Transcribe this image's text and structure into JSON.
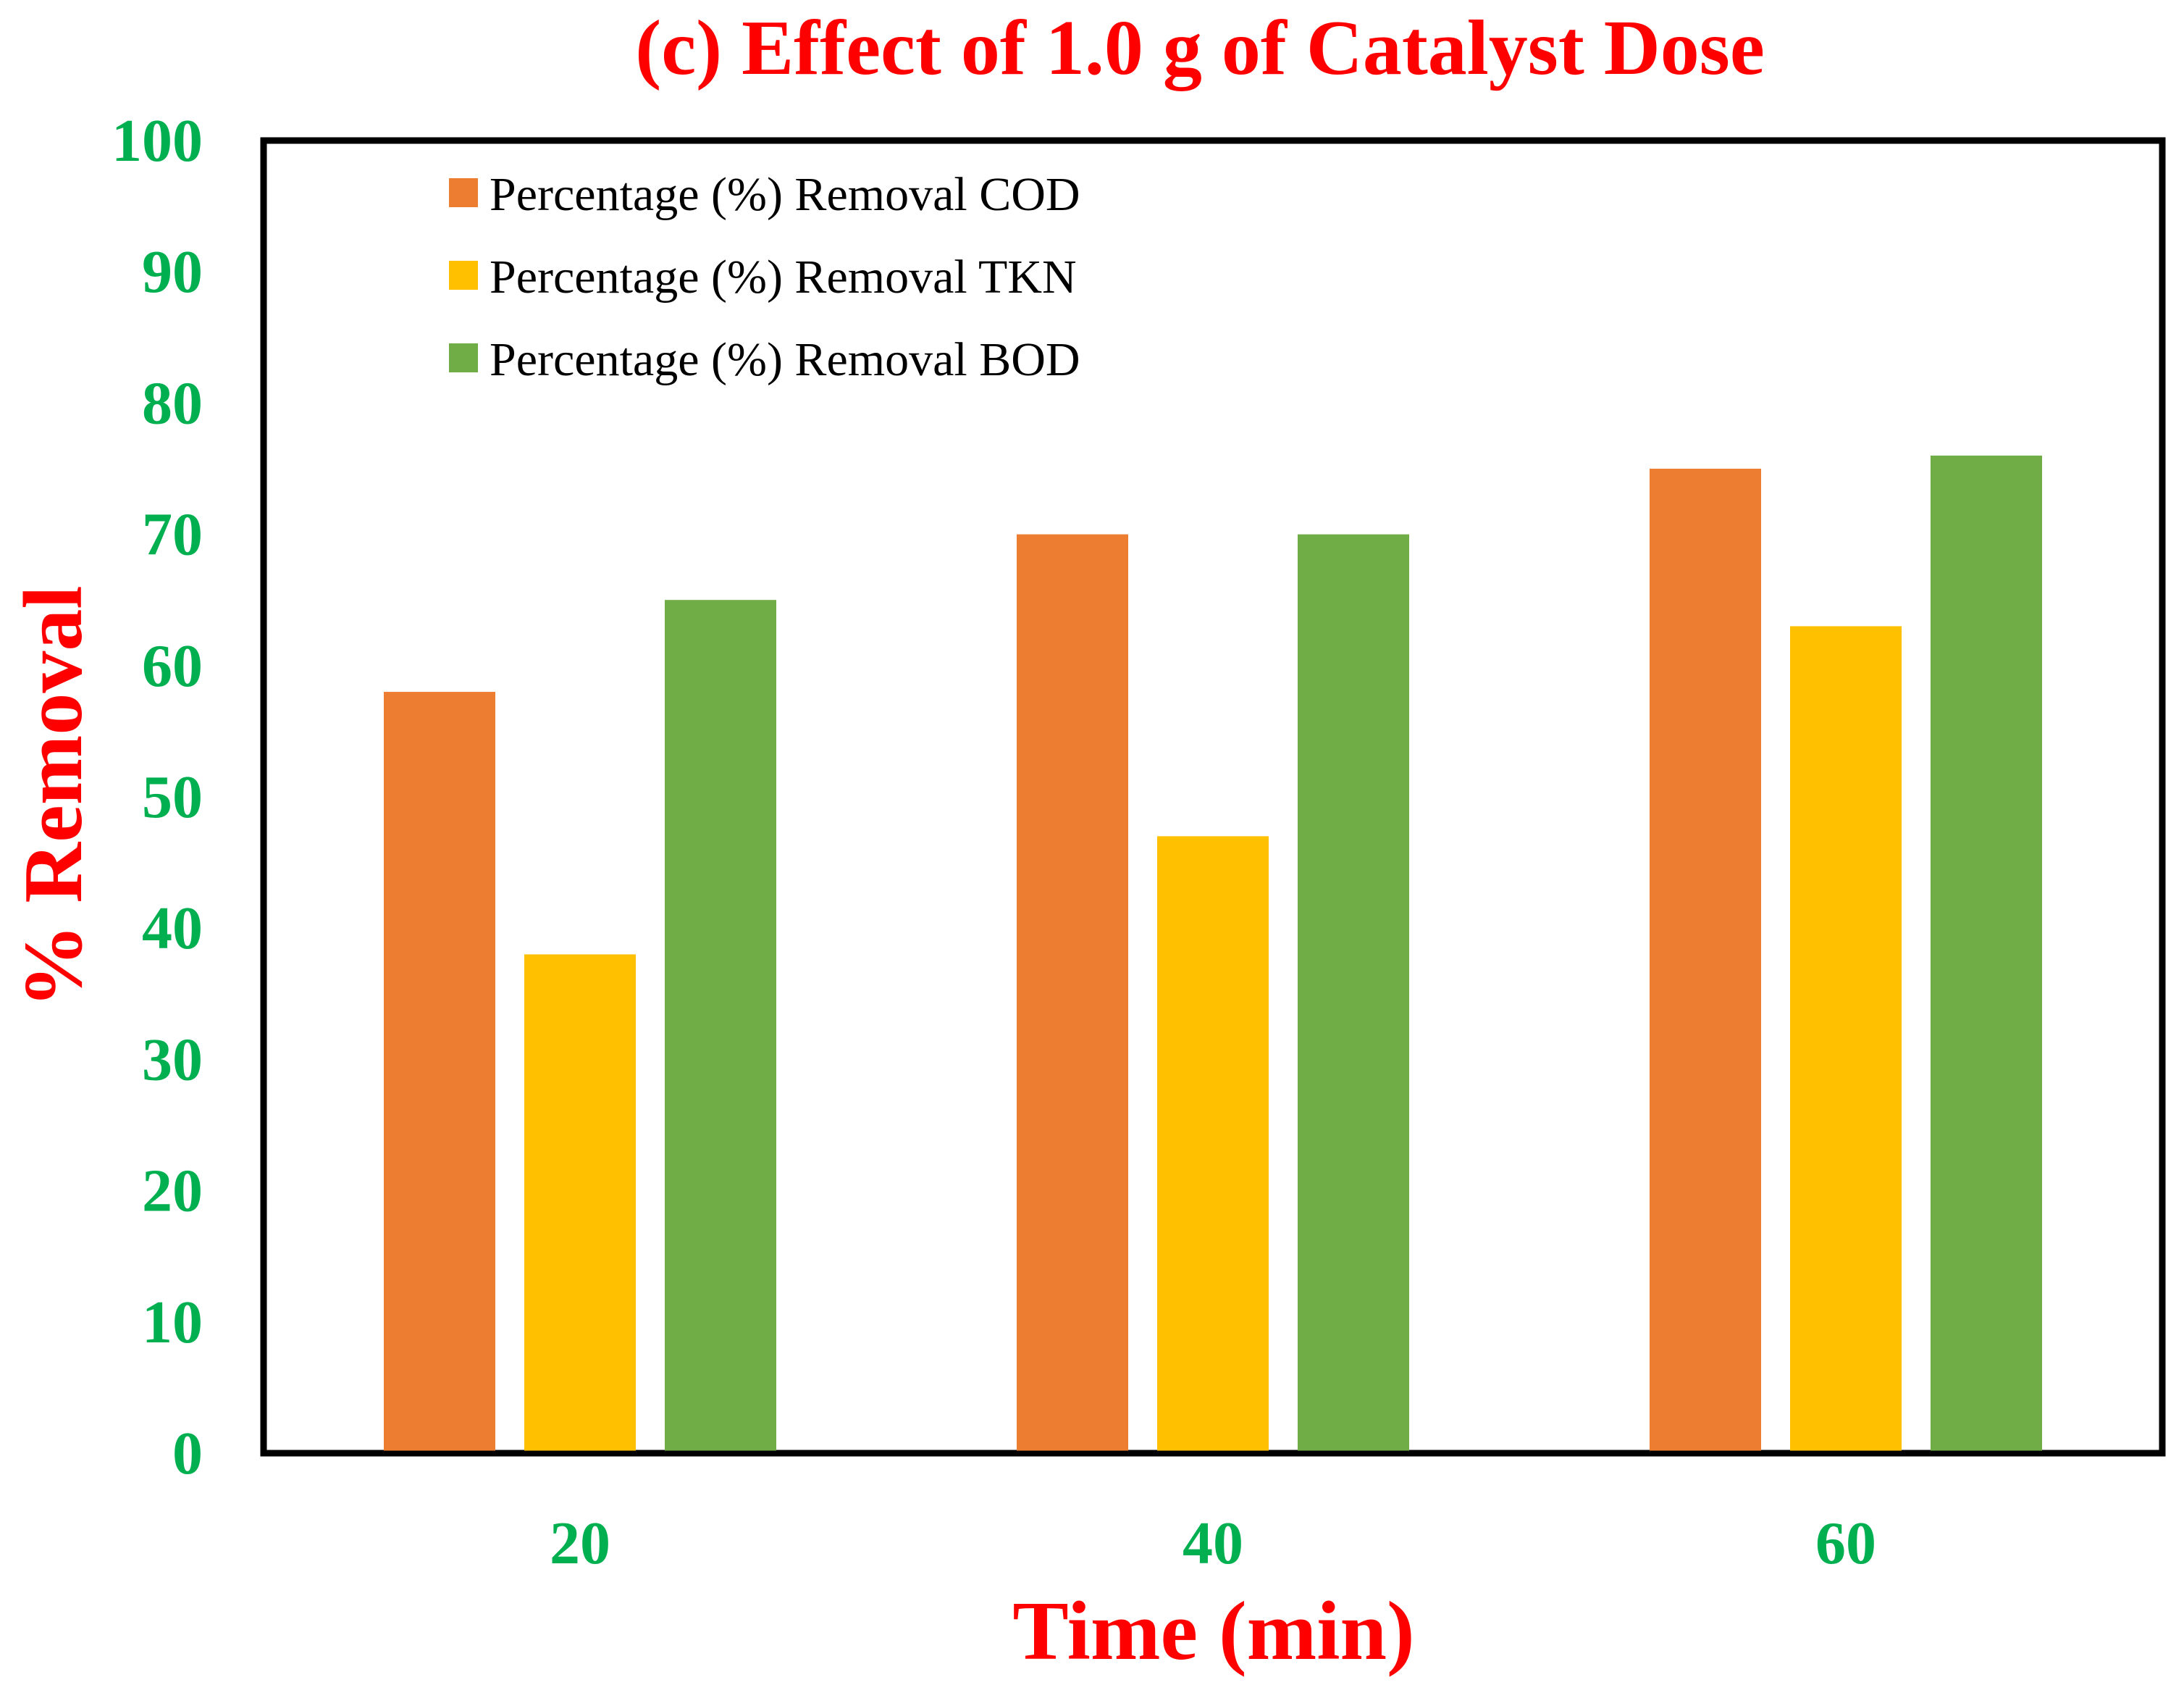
{
  "chart_data": {
    "type": "bar",
    "title": "(c) Effect of 1.0 g of Catalyst Dose",
    "xlabel": "Time (min)",
    "ylabel": "% Removal",
    "categories": [
      "20",
      "40",
      "60"
    ],
    "series": [
      {
        "name": "Percentage (%) Removal COD",
        "color": "#ED7D31",
        "values": [
          58,
          70,
          75
        ]
      },
      {
        "name": "Percentage (%) Removal TKN",
        "color": "#FFC000",
        "values": [
          38,
          47,
          63
        ]
      },
      {
        "name": "Percentage (%) Removal BOD",
        "color": "#70AD47",
        "values": [
          65,
          70,
          76
        ]
      }
    ],
    "ylim": [
      0,
      100
    ],
    "yticks": [
      0,
      10,
      20,
      30,
      40,
      50,
      60,
      70,
      80,
      90,
      100
    ],
    "grid": false,
    "legend_position": "top-left",
    "colors": {
      "title": "#FF0000",
      "axis_title": "#FF0000",
      "tick_labels": "#00B050",
      "frame": "#000000"
    }
  }
}
